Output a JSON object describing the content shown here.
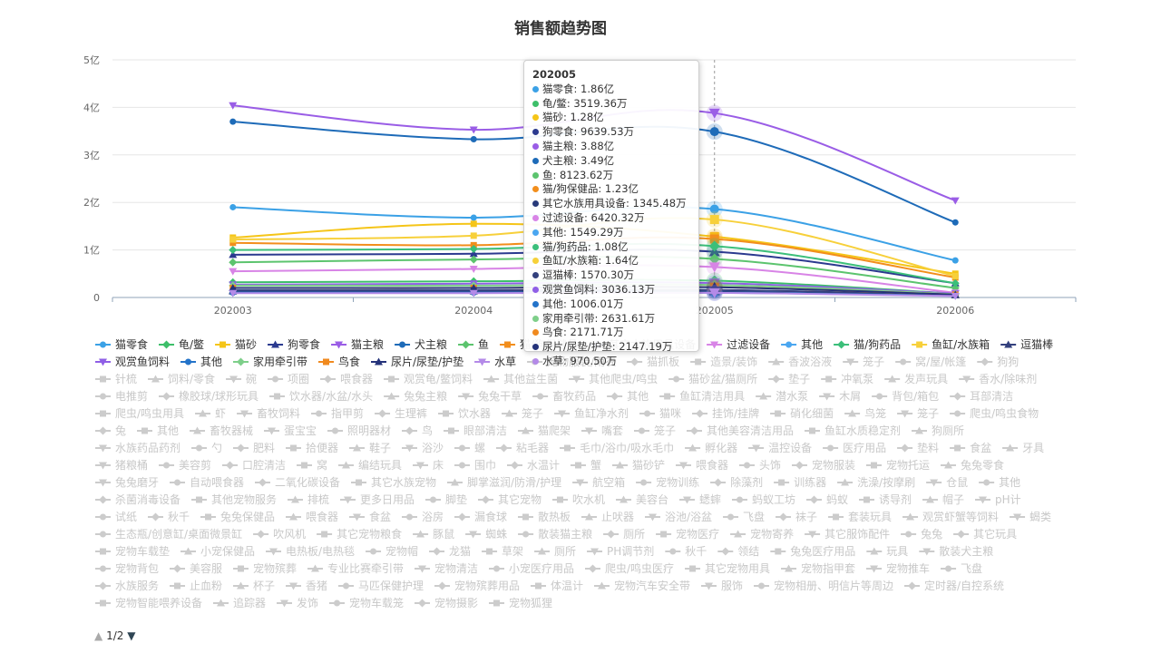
{
  "chart_data": {
    "type": "line",
    "title": "销售额趋势图",
    "x": [
      "202003",
      "202004",
      "202005",
      "202006"
    ],
    "y_ticks": [
      "0",
      "1亿",
      "2亿",
      "3亿",
      "4亿",
      "5亿"
    ],
    "ylim": [
      0,
      5
    ],
    "y_unit": "亿",
    "smooth": true,
    "series": [
      {
        "name": "猫零食",
        "color": "#3ba1e6",
        "symbol": "circle",
        "values": [
          1.9,
          1.68,
          1.86,
          0.78
        ]
      },
      {
        "name": "龟/鳖",
        "color": "#3dbf6a",
        "symbol": "diamond",
        "values": [
          0.32,
          0.34,
          0.352,
          0.08
        ]
      },
      {
        "name": "猫砂",
        "color": "#f5c518",
        "symbol": "square",
        "values": [
          1.26,
          1.55,
          1.28,
          0.5
        ]
      },
      {
        "name": "狗零食",
        "color": "#2b3a8f",
        "symbol": "triangle",
        "values": [
          0.9,
          0.92,
          0.964,
          0.3
        ]
      },
      {
        "name": "猫主粮",
        "color": "#9a5de6",
        "symbol": "triangle-down",
        "values": [
          4.04,
          3.53,
          3.88,
          2.04
        ]
      },
      {
        "name": "犬主粮",
        "color": "#1e6bb8",
        "symbol": "circle",
        "values": [
          3.7,
          3.33,
          3.49,
          1.58
        ]
      },
      {
        "name": "鱼",
        "color": "#5cc46e",
        "symbol": "diamond",
        "values": [
          0.74,
          0.8,
          0.812,
          0.2
        ]
      },
      {
        "name": "猫/狗保健品",
        "color": "#f28e1c",
        "symbol": "square",
        "values": [
          1.15,
          1.1,
          1.23,
          0.42
        ]
      },
      {
        "name": "其它水族用具设备",
        "color": "#283a7a",
        "symbol": "triangle",
        "values": [
          0.13,
          0.13,
          0.135,
          0.05
        ]
      },
      {
        "name": "过滤设备",
        "color": "#d884e6",
        "symbol": "triangle-down",
        "values": [
          0.55,
          0.6,
          0.642,
          0.1
        ]
      },
      {
        "name": "其他",
        "color": "#4aa6f0",
        "symbol": "circle",
        "values": [
          0.15,
          0.15,
          0.155,
          0.05
        ]
      },
      {
        "name": "猫/狗药品",
        "color": "#3cbf7a",
        "symbol": "diamond",
        "values": [
          1.0,
          1.02,
          1.08,
          0.3
        ]
      },
      {
        "name": "鱼缸/水族箱",
        "color": "#f7d03a",
        "symbol": "square",
        "values": [
          1.22,
          1.3,
          1.64,
          0.45
        ]
      },
      {
        "name": "逗猫棒",
        "color": "#33407d",
        "symbol": "triangle",
        "values": [
          0.15,
          0.15,
          0.157,
          0.05
        ]
      },
      {
        "name": "观赏鱼饲料",
        "color": "#8f5fe6",
        "symbol": "triangle-down",
        "values": [
          0.27,
          0.29,
          0.304,
          0.08
        ]
      },
      {
        "name": "其他",
        "color": "#2373c9",
        "symbol": "circle",
        "values": [
          0.1,
          0.1,
          0.1,
          0.04
        ]
      },
      {
        "name": "家用牵引带",
        "color": "#7ecf8a",
        "symbol": "diamond",
        "values": [
          0.25,
          0.25,
          0.263,
          0.07
        ]
      },
      {
        "name": "鸟食",
        "color": "#f08a1f",
        "symbol": "square",
        "values": [
          0.2,
          0.2,
          0.217,
          0.06
        ]
      },
      {
        "name": "尿片/尿垫/护垫",
        "color": "#25337a",
        "symbol": "triangle",
        "values": [
          0.2,
          0.2,
          0.215,
          0.06
        ]
      },
      {
        "name": "水草",
        "color": "#b48ae8",
        "symbol": "triangle-down",
        "values": [
          0.09,
          0.09,
          0.097,
          0.03
        ]
      }
    ],
    "highlight_x": "202005",
    "legend_inactive": [
      "宠物服装/雨衣",
      "猫抓板",
      "造景/装饰",
      "香波浴液",
      "笼子",
      "窝/屋/帐篷",
      "狗狗",
      "针梳",
      "饲料/零食",
      "碗",
      "项圈",
      "喂食器",
      "观赏龟/鳖饲料",
      "其他益生菌",
      "其他爬虫/鸣虫",
      "猫砂盆/猫厕所",
      "垫子",
      "冲氧泵",
      "发声玩具",
      "香水/除味剂",
      "电推剪",
      "橡胶球/球形玩具",
      "饮水器/水盆/水头",
      "兔兔主粮",
      "兔兔干草",
      "畜牧药品",
      "其他",
      "鱼缸清洁用具",
      "潜水泵",
      "木屑",
      "背包/箱包",
      "耳部清洁",
      "爬虫/鸣虫用具",
      "虾",
      "畜牧饲料",
      "指甲剪",
      "生理裤",
      "饮水器",
      "笼子",
      "鱼缸净水剂",
      "猫咪",
      "挂饰/挂牌",
      "硝化细菌",
      "鸟笼",
      "笼子",
      "爬虫/鸣虫食物",
      "兔",
      "其他",
      "畜牧器械",
      "蛋宝宝",
      "照明器材",
      "鸟",
      "眼部清洁",
      "猫爬架",
      "嘴套",
      "笼子",
      "其他美容清洁用品",
      "鱼缸水质稳定剂",
      "狗厕所",
      "水族药品药剂",
      "勺",
      "肥料",
      "拾便器",
      "鞋子",
      "浴沙",
      "螺",
      "粘毛器",
      "毛巾/浴巾/吸水毛巾",
      "孵化器",
      "温控设备",
      "医疗用品",
      "垫料",
      "食盆",
      "牙具",
      "猪粮桶",
      "美容剪",
      "口腔清洁",
      "窝",
      "编结玩具",
      "床",
      "围巾",
      "水温计",
      "蟹",
      "猫砂铲",
      "喂食器",
      "头饰",
      "宠物服装",
      "宠物托运",
      "兔兔零食",
      "兔兔磨牙",
      "自动喂食器",
      "二氧化碳设备",
      "其它水族宠物",
      "脚掌滋润/防滑/护理",
      "航空箱",
      "宠物训练",
      "除藻剂",
      "训练器",
      "洗澡/按摩刷",
      "仓鼠",
      "其他",
      "杀菌消毒设备",
      "其他宠物服务",
      "排梳",
      "更多日用品",
      "脚垫",
      "其它宠物",
      "吹水机",
      "美容台",
      "蟋蟀",
      "蚂蚁工坊",
      "蚂蚁",
      "诱导剂",
      "帽子",
      "pH计",
      "试纸",
      "秋千",
      "兔兔保健品",
      "喂食器",
      "食盆",
      "浴房",
      "漏食球",
      "散热板",
      "止吠器",
      "浴池/浴盆",
      "飞盘",
      "袜子",
      "套装玩具",
      "观赏虾蟹等饲料",
      "蝎类",
      "生态瓶/创意缸/桌面微景缸",
      "吹风机",
      "其它宠物粮食",
      "豚鼠",
      "蜘蛛",
      "散装猫主粮",
      "厕所",
      "宠物医疗",
      "宠物寄养",
      "其它服饰配件",
      "兔兔",
      "其它玩具",
      "宠物车载垫",
      "小宠保健品",
      "电热板/电热毯",
      "宠物帽",
      "龙猫",
      "草架",
      "厕所",
      "PH调节剂",
      "秋千",
      "领结",
      "兔兔医疗用品",
      "玩具",
      "散装犬主粮",
      "宠物背包",
      "美容服",
      "宠物殡葬",
      "专业比赛牵引带",
      "宠物清洁",
      "小宠医疗用品",
      "爬虫/鸣虫医疗",
      "其它宠物用具",
      "宠物指甲套",
      "宠物推车",
      "飞盘",
      "水族服务",
      "止血粉",
      "杯子",
      "香猪",
      "马匹保健护理",
      "宠物殡葬用品",
      "体温计",
      "宠物汽车安全带",
      "服饰",
      "宠物相册、明信片等周边",
      "定时器/自控系统",
      "宠物智能喂养设备",
      "追踪器",
      "发饰",
      "宠物车载笼",
      "宠物摄影",
      "宠物狐狸"
    ]
  },
  "tooltip": {
    "title": "202005",
    "rows": [
      {
        "label": "猫零食: 1.86亿",
        "color": "#3ba1e6"
      },
      {
        "label": "龟/鳖: 3519.36万",
        "color": "#3dbf6a"
      },
      {
        "label": "猫砂: 1.28亿",
        "color": "#f5c518"
      },
      {
        "label": "狗零食: 9639.53万",
        "color": "#2b3a8f"
      },
      {
        "label": "猫主粮: 3.88亿",
        "color": "#9a5de6"
      },
      {
        "label": "犬主粮: 3.49亿",
        "color": "#1e6bb8"
      },
      {
        "label": "鱼: 8123.62万",
        "color": "#5cc46e"
      },
      {
        "label": "猫/狗保健品: 1.23亿",
        "color": "#f28e1c"
      },
      {
        "label": "其它水族用具设备: 1345.48万",
        "color": "#283a7a"
      },
      {
        "label": "过滤设备: 6420.32万",
        "color": "#d884e6"
      },
      {
        "label": "其他: 1549.29万",
        "color": "#4aa6f0"
      },
      {
        "label": "猫/狗药品: 1.08亿",
        "color": "#3cbf7a"
      },
      {
        "label": "鱼缸/水族箱: 1.64亿",
        "color": "#f7d03a"
      },
      {
        "label": "逗猫棒: 1570.30万",
        "color": "#33407d"
      },
      {
        "label": "观赏鱼饲料: 3036.13万",
        "color": "#8f5fe6"
      },
      {
        "label": "其他: 1006.01万",
        "color": "#2373c9"
      },
      {
        "label": "家用牵引带: 2631.61万",
        "color": "#7ecf8a"
      },
      {
        "label": "鸟食: 2171.71万",
        "color": "#f08a1f"
      },
      {
        "label": "尿片/尿垫/护垫: 2147.19万",
        "color": "#25337a"
      },
      {
        "label": "水草: 970.50万",
        "color": "#b48ae8"
      }
    ]
  },
  "pager": {
    "text": "1/2"
  }
}
